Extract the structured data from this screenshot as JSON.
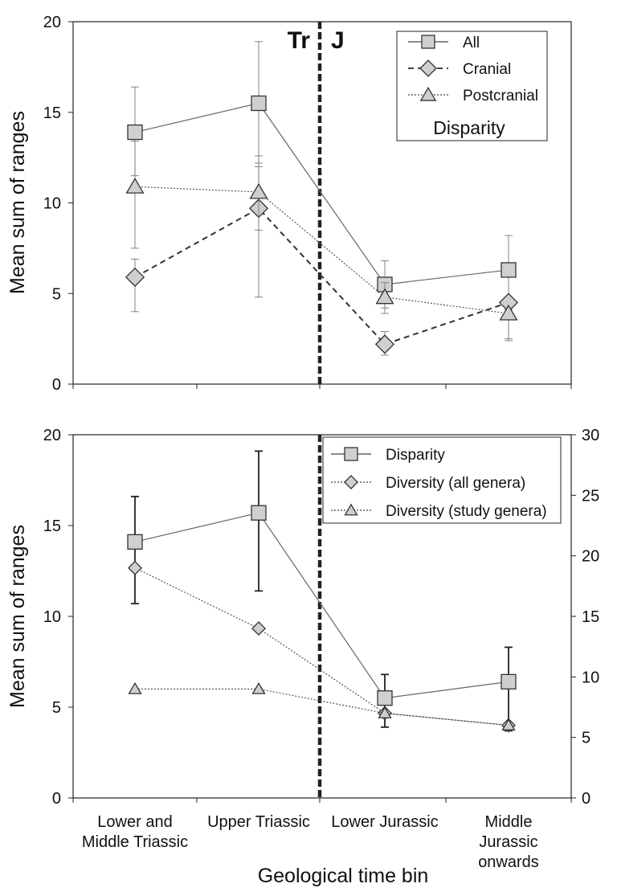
{
  "chart_data": [
    {
      "type": "line",
      "panel": "top",
      "ylabel": "Mean sum of ranges",
      "ylim": [
        0,
        20
      ],
      "yticks": [
        "0",
        "5",
        "10",
        "15",
        "20"
      ],
      "categories": [
        "Lower and Middle Triassic",
        "Upper Triassic",
        "Lower Jurassic",
        "Middle Jurassic onwards"
      ],
      "boundary_labels": [
        "Tr",
        "J"
      ],
      "legend_title": "Disparity",
      "legend_position": "top-right",
      "grid": false,
      "series": [
        {
          "name": "All",
          "marker": "square",
          "line": "solid",
          "values": [
            13.9,
            15.5,
            5.5,
            6.3
          ],
          "error_low": [
            11.5,
            12.0,
            4.2,
            4.4
          ],
          "error_high": [
            16.4,
            18.9,
            6.8,
            8.2
          ]
        },
        {
          "name": "Cranial",
          "marker": "diamond",
          "line": "dashed",
          "values": [
            5.9,
            9.7,
            2.2,
            4.5
          ],
          "error_low": [
            4.0,
            8.5,
            1.6,
            2.5
          ],
          "error_high": [
            6.9,
            12.2,
            2.9,
            4.6
          ]
        },
        {
          "name": "Postcranial",
          "marker": "triangle",
          "line": "dotted",
          "values": [
            10.9,
            10.6,
            4.8,
            3.9
          ],
          "error_low": [
            7.5,
            4.8,
            3.9,
            2.4
          ],
          "error_high": [
            13.4,
            12.6,
            5.6,
            4.1
          ]
        }
      ]
    },
    {
      "type": "line",
      "panel": "bottom",
      "ylabel": "Mean sum of ranges",
      "xlabel": "Geological time bin",
      "ylim": [
        0,
        20
      ],
      "yticks": [
        "0",
        "5",
        "10",
        "15",
        "20"
      ],
      "y2lim": [
        0,
        30
      ],
      "y2ticks": [
        "0",
        "5",
        "10",
        "15",
        "20",
        "25",
        "30"
      ],
      "categories": [
        "Lower and Middle Triassic",
        "Upper Triassic",
        "Lower Jurassic",
        "Middle Jurassic onwards"
      ],
      "category_labels": [
        [
          "Lower and",
          "Middle Triassic"
        ],
        [
          "Upper Triassic"
        ],
        [
          "Lower Jurassic"
        ],
        [
          "Middle",
          "Jurassic",
          "onwards"
        ]
      ],
      "legend_position": "top-right",
      "grid": false,
      "series": [
        {
          "name": "Disparity",
          "axis": "left",
          "marker": "square",
          "line": "solid",
          "values": [
            14.1,
            15.7,
            5.5,
            6.4
          ],
          "error_low": [
            10.7,
            11.4,
            3.9,
            3.7
          ],
          "error_high": [
            16.6,
            19.1,
            6.8,
            8.3
          ]
        },
        {
          "name": "Diversity (all genera)",
          "axis": "right",
          "marker": "diamond",
          "line": "dotted",
          "values": [
            19,
            14,
            7,
            6
          ]
        },
        {
          "name": "Diversity (study genera)",
          "axis": "right",
          "marker": "triangle",
          "line": "dotted",
          "values": [
            9,
            9,
            7,
            6
          ]
        }
      ]
    }
  ]
}
